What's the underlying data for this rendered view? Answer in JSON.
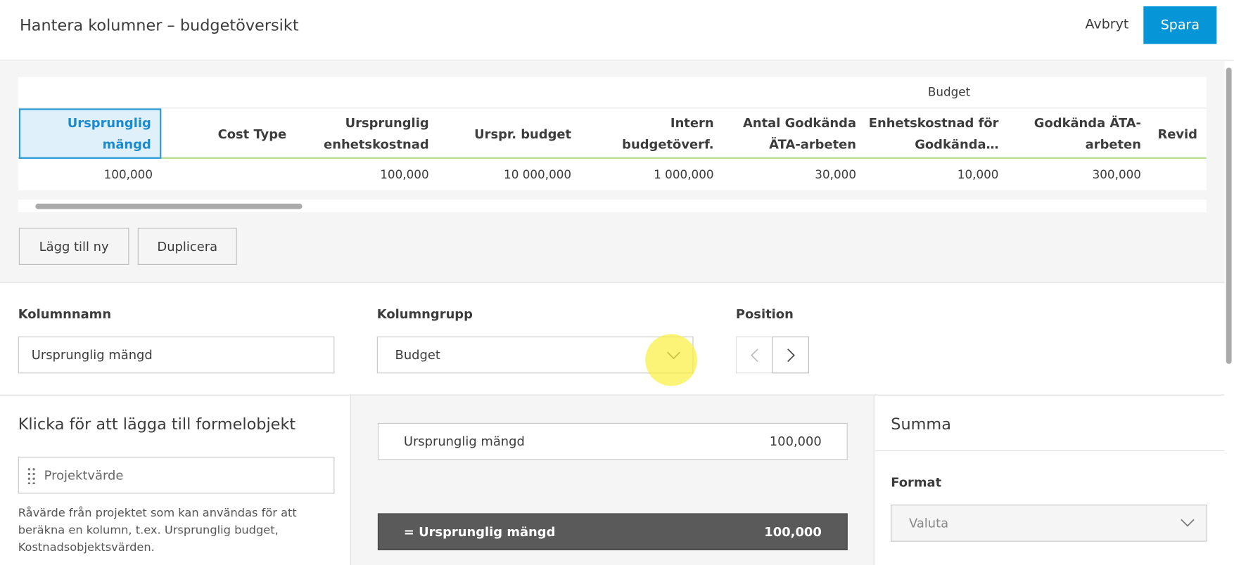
{
  "header": {
    "title": "Hantera kolumner – budgetöversikt",
    "cancel": "Avbryt",
    "save": "Spara"
  },
  "table": {
    "group_label": "Budget",
    "columns": [
      {
        "header": "Ursprunglig mängd",
        "value": "100,000"
      },
      {
        "header": "Cost Type",
        "value": null
      },
      {
        "header": "Ursprunglig enhetskostnad",
        "value": "100,000"
      },
      {
        "header": "Urspr. budget",
        "value": "10 000,000"
      },
      {
        "header": "Intern budgetöverf.",
        "value": "1 000,000"
      },
      {
        "header": "Antal Godkända ÄTA-arbeten",
        "value": "30,000"
      },
      {
        "header": "Enhetskostnad för Godkända…",
        "value": "10,000"
      },
      {
        "header": "Godkända ÄTA-arbeten",
        "value": "300,000"
      },
      {
        "header": "Revid",
        "value": null
      }
    ]
  },
  "actions": {
    "add": "Lägg till ny",
    "duplicate": "Duplicera"
  },
  "form": {
    "column_name_label": "Kolumnnamn",
    "column_name": "Ursprunglig mängd",
    "column_group_label": "Kolumngrupp",
    "column_group": "Budget",
    "position_label": "Position"
  },
  "formula_objects": {
    "title": "Klicka för att lägga till formelobjekt",
    "item": "Projektvärde",
    "description": "Råvärde från projektet som kan användas för att beräkna en kolumn, t.ex. Ursprunglig budget, Kostnadsobjektsvärden."
  },
  "formula": {
    "items": [
      {
        "name": "Ursprunglig mängd",
        "value": "100,000"
      }
    ],
    "result": {
      "name": "= Ursprunglig mängd",
      "value": "100,000"
    }
  },
  "summary": {
    "title": "Summa",
    "format_label": "Format",
    "format": "Valuta"
  }
}
